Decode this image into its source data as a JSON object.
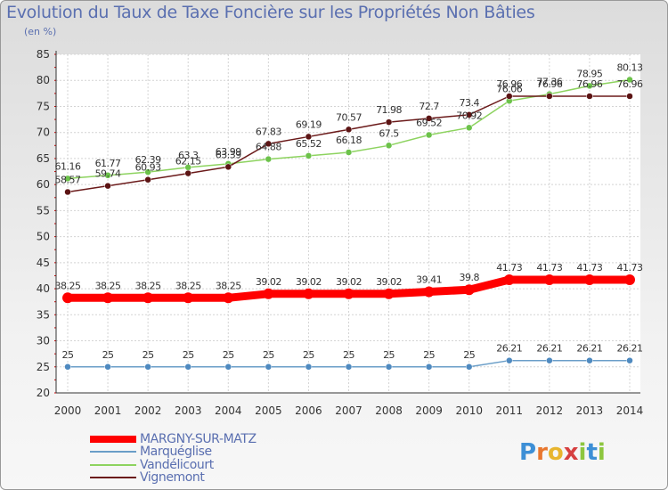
{
  "title": "Evolution du Taux de Taxe Foncière sur les Propriétés Non Bâties",
  "unit_label": "(en %)",
  "logo": {
    "text": "Proxiti",
    "letters": [
      "P",
      "r",
      "o",
      "x",
      "i",
      "t",
      "i"
    ],
    "colors": [
      "#3d8fd6",
      "#e8772e",
      "#e8b52e",
      "#d64040",
      "#8dc63f",
      "#3d8fd6",
      "#8dc63f"
    ]
  },
  "chart_data": {
    "type": "line",
    "title": "Evolution du Taux de Taxe Foncière sur les Propriétés Non Bâties",
    "ylabel": "(en %)",
    "xlabel": "",
    "categories": [
      "2000",
      "2001",
      "2002",
      "2003",
      "2004",
      "2005",
      "2006",
      "2007",
      "2008",
      "2009",
      "2010",
      "2011",
      "2012",
      "2013",
      "2014"
    ],
    "ylim": [
      20,
      85
    ],
    "yticks": [
      "20",
      "25",
      "30",
      "35",
      "40",
      "45",
      "50",
      "55",
      "60",
      "65",
      "70",
      "75",
      "80",
      "85"
    ],
    "grid": true,
    "series": [
      {
        "name": "MARGNY-SUR-MATZ",
        "color": "#ff0000",
        "values": [
          38.25,
          38.25,
          38.25,
          38.25,
          38.25,
          39.02,
          39.02,
          39.02,
          39.02,
          39.41,
          39.8,
          41.73,
          41.73,
          41.73,
          41.73
        ],
        "labels": [
          "38.25",
          "38.25",
          "38.25",
          "38.25",
          "38.25",
          "39.02",
          "39.02",
          "39.02",
          "39.02",
          "39.41",
          "39.8",
          "41.73",
          "41.73",
          "41.73",
          "41.73"
        ]
      },
      {
        "name": "Marquéglise",
        "color": "#6a9ec8",
        "values": [
          25,
          25,
          25,
          25,
          25,
          25,
          25,
          25,
          25,
          25,
          25,
          26.21,
          26.21,
          26.21,
          26.21
        ],
        "labels": [
          "25",
          "25",
          "25",
          "25",
          "25",
          "25",
          "25",
          "25",
          "25",
          "25",
          "25",
          "26.21",
          "26.21",
          "26.21",
          "26.21"
        ]
      },
      {
        "name": "Vandélicourt",
        "color": "#8dd35f",
        "values": [
          61.16,
          61.77,
          62.39,
          63.3,
          63.99,
          64.88,
          65.52,
          66.18,
          67.5,
          69.52,
          70.92,
          76.06,
          77.36,
          78.95,
          80.13
        ],
        "labels": [
          "61.16",
          "61.77",
          "62.39",
          "63.3",
          "63.99",
          "64.88",
          "65.52",
          "66.18",
          "67.5",
          "69.52",
          "70.92",
          "76.06",
          "77.36",
          "78.95",
          "80.13"
        ]
      },
      {
        "name": "Vignemont",
        "color": "#6b1a1a",
        "values": [
          58.57,
          59.74,
          60.93,
          62.15,
          63.39,
          67.83,
          69.19,
          70.57,
          71.98,
          72.7,
          73.4,
          76.96,
          76.96,
          76.96,
          76.96
        ],
        "labels": [
          "58.57",
          "59.74",
          "60.93",
          "62.15",
          "63.39",
          "67.83",
          "69.19",
          "70.57",
          "71.98",
          "72.7",
          "73.4",
          "76.96",
          "76.96",
          "76.96",
          "76.96"
        ]
      }
    ]
  }
}
